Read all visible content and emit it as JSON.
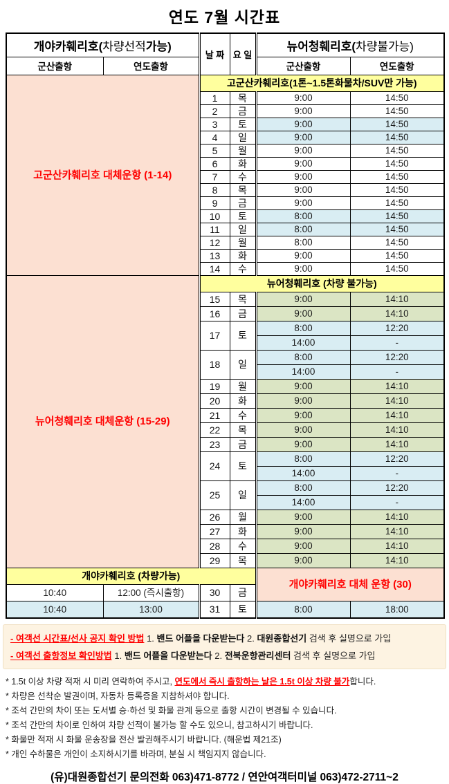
{
  "title": "연도  7월 시간표",
  "colors": {
    "pink": "#fce0d2",
    "yellow": "#ffff9e",
    "blue": "#d9edf3",
    "green": "#dbe5c4",
    "red": "#ff0000",
    "cream": "#fdf3e2"
  },
  "header": {
    "left_ship": {
      "b1": "개야카훼리호(",
      "light": "차량선적",
      "b2": "가능)"
    },
    "right_ship": {
      "b1": "뉴어청훼리호(",
      "light": "차량불가능)",
      "b2": ""
    },
    "date_col": "날 짜",
    "day_col": "요 일",
    "left_cols": [
      "군산출항",
      "연도출항"
    ],
    "right_cols": [
      "군산출항",
      "연도출항"
    ]
  },
  "section1": {
    "banner": "고군산카훼리호(1톤~1.5톤화물차/SUV만 가능)",
    "left_note": "고군산카훼리호 대체운항 (1-14)",
    "rows": [
      {
        "date": "1",
        "day": "목",
        "t1": "9:00",
        "t2": "14:50",
        "weekend": false
      },
      {
        "date": "2",
        "day": "금",
        "t1": "9:00",
        "t2": "14:50",
        "weekend": false
      },
      {
        "date": "3",
        "day": "토",
        "t1": "9:00",
        "t2": "14:50",
        "weekend": true
      },
      {
        "date": "4",
        "day": "일",
        "t1": "9:00",
        "t2": "14:50",
        "weekend": true
      },
      {
        "date": "5",
        "day": "월",
        "t1": "9:00",
        "t2": "14:50",
        "weekend": false
      },
      {
        "date": "6",
        "day": "화",
        "t1": "9:00",
        "t2": "14:50",
        "weekend": false
      },
      {
        "date": "7",
        "day": "수",
        "t1": "9:00",
        "t2": "14:50",
        "weekend": false
      },
      {
        "date": "8",
        "day": "목",
        "t1": "9:00",
        "t2": "14:50",
        "weekend": false
      },
      {
        "date": "9",
        "day": "금",
        "t1": "9:00",
        "t2": "14:50",
        "weekend": false
      },
      {
        "date": "10",
        "day": "토",
        "t1": "8:00",
        "t2": "14:50",
        "weekend": true
      },
      {
        "date": "11",
        "day": "일",
        "t1": "8:00",
        "t2": "14:50",
        "weekend": true
      },
      {
        "date": "12",
        "day": "월",
        "t1": "8:00",
        "t2": "14:50",
        "weekend": false
      },
      {
        "date": "13",
        "day": "화",
        "t1": "9:00",
        "t2": "14:50",
        "weekend": false
      },
      {
        "date": "14",
        "day": "수",
        "t1": "9:00",
        "t2": "14:50",
        "weekend": false
      }
    ]
  },
  "section2": {
    "banner": "뉴어청훼리호 (차량 불가능)",
    "left_note": "뉴어청훼리호 대체운항 (15-29)",
    "rows": [
      {
        "date": "15",
        "day": "목",
        "times": [
          [
            "9:00",
            "14:10"
          ]
        ],
        "weekend": false
      },
      {
        "date": "16",
        "day": "금",
        "times": [
          [
            "9:00",
            "14:10"
          ]
        ],
        "weekend": false
      },
      {
        "date": "17",
        "day": "토",
        "times": [
          [
            "8:00",
            "12:20"
          ],
          [
            "14:00",
            "-"
          ]
        ],
        "weekend": true
      },
      {
        "date": "18",
        "day": "일",
        "times": [
          [
            "8:00",
            "12:20"
          ],
          [
            "14:00",
            "-"
          ]
        ],
        "weekend": true
      },
      {
        "date": "19",
        "day": "월",
        "times": [
          [
            "9:00",
            "14:10"
          ]
        ],
        "weekend": false
      },
      {
        "date": "20",
        "day": "화",
        "times": [
          [
            "9:00",
            "14:10"
          ]
        ],
        "weekend": false
      },
      {
        "date": "21",
        "day": "수",
        "times": [
          [
            "9:00",
            "14:10"
          ]
        ],
        "weekend": false
      },
      {
        "date": "22",
        "day": "목",
        "times": [
          [
            "9:00",
            "14:10"
          ]
        ],
        "weekend": false
      },
      {
        "date": "23",
        "day": "금",
        "times": [
          [
            "9:00",
            "14:10"
          ]
        ],
        "weekend": false
      },
      {
        "date": "24",
        "day": "토",
        "times": [
          [
            "8:00",
            "12:20"
          ],
          [
            "14:00",
            "-"
          ]
        ],
        "weekend": true
      },
      {
        "date": "25",
        "day": "일",
        "times": [
          [
            "8:00",
            "12:20"
          ],
          [
            "14:00",
            "-"
          ]
        ],
        "weekend": true
      },
      {
        "date": "26",
        "day": "월",
        "times": [
          [
            "9:00",
            "14:10"
          ]
        ],
        "weekend": false
      },
      {
        "date": "27",
        "day": "화",
        "times": [
          [
            "9:00",
            "14:10"
          ]
        ],
        "weekend": false
      },
      {
        "date": "28",
        "day": "수",
        "times": [
          [
            "9:00",
            "14:10"
          ]
        ],
        "weekend": false
      },
      {
        "date": "29",
        "day": "목",
        "times": [
          [
            "9:00",
            "14:10"
          ]
        ],
        "weekend": false
      }
    ]
  },
  "section3": {
    "left_banner": "개야카훼리호 (차량가능)",
    "right_note": "개야카훼리호 대체 운항 (30)",
    "rows": [
      {
        "left1": "10:40",
        "left2": "12:00 (즉시출항)",
        "date": "30",
        "day": "금",
        "right": null,
        "weekend": false
      },
      {
        "left1": "10:40",
        "left2": "13:00",
        "date": "31",
        "day": "토",
        "right": [
          "8:00",
          "18:00"
        ],
        "weekend": true
      }
    ]
  },
  "notes_box": {
    "lines": [
      {
        "red": "- 여객선 시간표/선사 공지 확인 방법",
        "parts": [
          {
            "t": " 1. ",
            "b": false
          },
          {
            "t": "밴드 어플을 다운받는다",
            "b": true
          },
          {
            "t": " 2. ",
            "b": false
          },
          {
            "t": "대원종합선기",
            "b": true
          },
          {
            "t": " 검색 후 실명으로 가입",
            "b": false
          }
        ]
      },
      {
        "red": "- 여객선 출항정보 확인방법",
        "parts": [
          {
            "t": " 1. ",
            "b": false
          },
          {
            "t": "밴드 어플을 다운받는다",
            "b": true
          },
          {
            "t": " 2. ",
            "b": false
          },
          {
            "t": "전북운항관리센터",
            "b": true
          },
          {
            "t": " 검색 후 실명으로 가입",
            "b": false
          }
        ]
      }
    ]
  },
  "star_notes": [
    {
      "pre": "* 1.5t 이상 차량 적재 시 미리 연락하여 주시고, ",
      "red": "연도에서 즉시 출항하는 날은 1.5t 이상 차량 불가",
      "post": "합니다."
    },
    {
      "pre": "* 차량은 선착순 발권이며, 자동차 등록증을 지참하셔야 합니다.",
      "red": "",
      "post": ""
    },
    {
      "pre": "* 조석 간만의 차이 또는 도서별 승·하선 및 화물 관계 등으로 출항 시간이 변경될 수 있습니다.",
      "red": "",
      "post": ""
    },
    {
      "pre": "* 조석 간만의 차이로 인하여 차량 선적이 불가능 할 수도 있으니, 참고하시기 바랍니다.",
      "red": "",
      "post": ""
    },
    {
      "pre": "* 화물만 적재 시 화물 운송장을 전산 발권해주시기 바랍니다. (해운법 제21조)",
      "red": "",
      "post": ""
    },
    {
      "pre": "* 개인 수하물은 개인이 소지하시기를 바라며, 분실 시 책임지지 않습니다.",
      "red": "",
      "post": ""
    }
  ],
  "footer": "(유)대원종합선기  문의전화 063)471-8772  /  연안여객터미널 063)472-2711~2"
}
